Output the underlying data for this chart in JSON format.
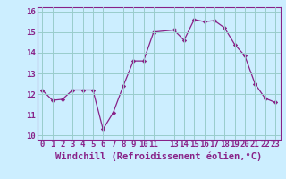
{
  "x": [
    0,
    1,
    2,
    3,
    4,
    5,
    6,
    7,
    8,
    9,
    10,
    11,
    13,
    14,
    15,
    16,
    17,
    18,
    19,
    20,
    21,
    22,
    23
  ],
  "y": [
    12.2,
    11.7,
    11.75,
    12.2,
    12.2,
    12.2,
    10.3,
    11.1,
    12.4,
    13.6,
    13.6,
    15.0,
    15.1,
    14.6,
    15.6,
    15.5,
    15.55,
    15.2,
    14.4,
    13.85,
    12.5,
    11.8,
    11.6
  ],
  "line_color": "#882288",
  "marker_color": "#882288",
  "bg_color": "#cceeff",
  "grid_color": "#99cccc",
  "xlabel": "Windchill (Refroidissement éolien,°C)",
  "ylim": [
    9.8,
    16.2
  ],
  "xlim": [
    -0.5,
    23.5
  ],
  "yticks": [
    10,
    11,
    12,
    13,
    14,
    15,
    16
  ],
  "xticks": [
    0,
    1,
    2,
    3,
    4,
    5,
    6,
    7,
    8,
    9,
    10,
    11,
    13,
    14,
    15,
    16,
    17,
    18,
    19,
    20,
    21,
    22,
    23
  ],
  "xtick_labels": [
    "0",
    "1",
    "2",
    "3",
    "4",
    "5",
    "6",
    "7",
    "8",
    "9",
    "10",
    "11",
    "13",
    "14",
    "15",
    "16",
    "17",
    "18",
    "19",
    "20",
    "21",
    "22",
    "23"
  ],
  "tick_fontsize": 6.5,
  "xlabel_fontsize": 7.5
}
